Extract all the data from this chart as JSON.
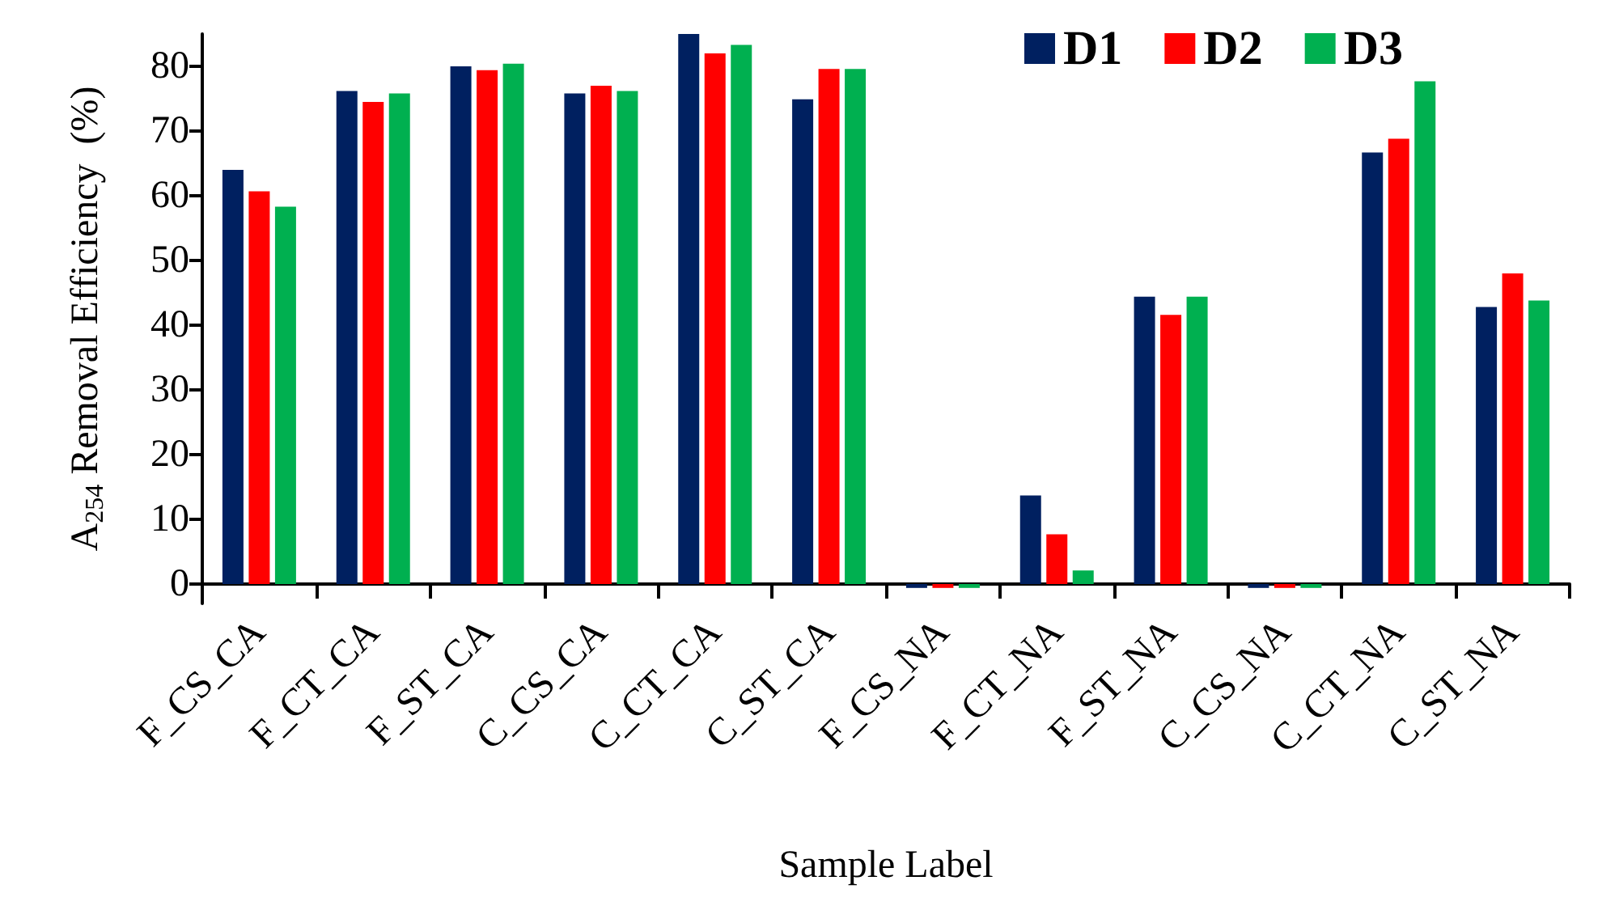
{
  "chart_data": {
    "type": "bar",
    "xlabel": "Sample Label",
    "ylabel": "A$_{254}$ Removal Efficiency  (%)",
    "categories": [
      "F_CS_CA",
      "F_CT_CA",
      "F_ST_CA",
      "C_CS_CA",
      "C_CT_CA",
      "C_ST_CA",
      "F_CS_NA",
      "F_CT_NA",
      "F_ST_NA",
      "C_CS_NA",
      "C_CT_NA",
      "C_ST_NA"
    ],
    "series": [
      {
        "name": "D1",
        "color": "#002060",
        "values": [
          64,
          76.2,
          80,
          75.8,
          85,
          74.9,
          -0.6,
          13.7,
          44.4,
          -0.6,
          66.7,
          42.8
        ]
      },
      {
        "name": "D2",
        "color": "#ff0000",
        "values": [
          60.7,
          74.5,
          79.4,
          77,
          82,
          79.6,
          -0.6,
          7.7,
          41.6,
          -0.6,
          68.8,
          48
        ]
      },
      {
        "name": "D3",
        "color": "#00b050",
        "values": [
          58.3,
          75.8,
          80.4,
          76.2,
          83.3,
          79.6,
          -0.6,
          2.1,
          44.4,
          -0.6,
          77.7,
          43.8
        ]
      }
    ],
    "ylim": [
      -3,
      85
    ],
    "yticks": [
      0,
      10,
      20,
      30,
      40,
      50,
      60,
      70,
      80
    ],
    "grid": false,
    "legend": "top right"
  }
}
